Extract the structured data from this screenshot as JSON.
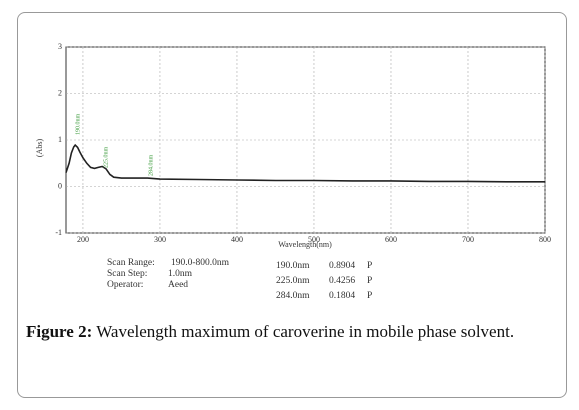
{
  "chart_data": {
    "type": "line",
    "xlabel": "Wavelength(nm)",
    "ylabel": "(Abs)",
    "x": [
      178,
      182,
      185,
      188,
      190,
      193,
      196,
      200,
      205,
      210,
      215,
      220,
      225,
      230,
      235,
      240,
      250,
      260,
      284,
      300,
      350,
      400,
      450,
      500,
      550,
      600,
      650,
      700,
      750,
      800
    ],
    "series": [
      {
        "color": "#222222",
        "values": [
          0.3,
          0.5,
          0.72,
          0.85,
          0.89,
          0.84,
          0.74,
          0.62,
          0.5,
          0.41,
          0.39,
          0.41,
          0.43,
          0.38,
          0.26,
          0.2,
          0.18,
          0.18,
          0.18,
          0.16,
          0.15,
          0.14,
          0.13,
          0.13,
          0.12,
          0.12,
          0.11,
          0.11,
          0.1,
          0.1
        ]
      }
    ],
    "xlim": [
      178,
      800
    ],
    "xticks": [
      200,
      300,
      400,
      500,
      600,
      700,
      800
    ],
    "ylim": [
      -1,
      3
    ],
    "yticks": [
      -1,
      0,
      1,
      2,
      3
    ],
    "grid": true,
    "annotations": [
      "190.0nm",
      "225.0nm",
      "284.0nm"
    ]
  },
  "scan_info": [
    [
      "Scan Range:",
      "190.0-800.0nm"
    ],
    [
      "Scan Step:",
      "1.0nm"
    ],
    [
      "Operator:",
      "Aeed"
    ]
  ],
  "peaks": [
    [
      "190.0nm",
      "0.8904",
      "P"
    ],
    [
      "225.0nm",
      "0.4256",
      "P"
    ],
    [
      "284.0nm",
      "0.1804",
      "P"
    ]
  ],
  "caption": {
    "label": "Figure 2:",
    "text": "Wavelength maximum of caroverine in mobile phase solvent."
  }
}
